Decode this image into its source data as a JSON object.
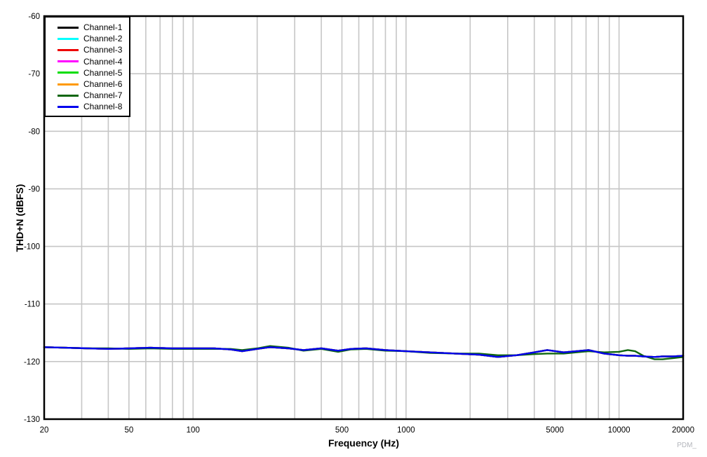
{
  "chart_data": {
    "type": "line",
    "title": "",
    "xlabel": "Frequency (Hz)",
    "ylabel": "THD+N (dBFS)",
    "watermark": "PDM_",
    "grid": true,
    "grid_color": "#c6c6c6",
    "frame_color": "#000000",
    "legend_position": "top-left",
    "x_axis": {
      "scale": "log",
      "min": 20,
      "max": 20000,
      "tick_values": [
        20,
        50,
        100,
        500,
        1000,
        5000,
        10000,
        20000
      ],
      "tick_labels": [
        "20",
        "50",
        "100",
        "500",
        "1000",
        "5000",
        "10000",
        "20000"
      ],
      "gridlines": [
        30,
        40,
        50,
        60,
        70,
        80,
        90,
        100,
        200,
        300,
        400,
        500,
        600,
        700,
        800,
        900,
        1000,
        2000,
        3000,
        4000,
        5000,
        6000,
        7000,
        8000,
        9000,
        10000
      ]
    },
    "y_axis": {
      "min": -130,
      "max": -60,
      "tick_values": [
        -60,
        -70,
        -80,
        -90,
        -100,
        -110,
        -120,
        -130
      ],
      "tick_labels": [
        "-60",
        "-70",
        "-80",
        "-90",
        "-100",
        "-110",
        "-120",
        "-130"
      ],
      "gridlines": [
        -70,
        -80,
        -90,
        -100,
        -110,
        -120
      ]
    },
    "x": [
      20,
      25,
      32,
      40,
      50,
      63,
      80,
      100,
      125,
      150,
      170,
      200,
      230,
      280,
      330,
      400,
      480,
      550,
      650,
      800,
      1000,
      1300,
      1700,
      2200,
      2700,
      3300,
      4000,
      4600,
      5500,
      6300,
      7200,
      8500,
      10000,
      11000,
      11900,
      13000,
      14700,
      16000,
      18000,
      20000
    ],
    "series": [
      {
        "name": "Channel-1",
        "color": "#000000",
        "values": [
          -117.5,
          -117.6,
          -117.7,
          -117.8,
          -117.7,
          -117.6,
          -117.7,
          -117.7,
          -117.7,
          -117.9,
          -118.2,
          -117.8,
          -117.5,
          -117.7,
          -118.0,
          -117.7,
          -118.1,
          -117.8,
          -117.7,
          -118.0,
          -118.2,
          -118.4,
          -118.6,
          -118.8,
          -119.2,
          -118.9,
          -118.4,
          -118.0,
          -118.4,
          -118.2,
          -118.0,
          -118.6,
          -118.9,
          -119.0,
          -119.0,
          -119.1,
          -119.2,
          -119.1,
          -119.1,
          -119.0
        ]
      },
      {
        "name": "Channel-2",
        "color": "#00ffff",
        "values": [
          -117.5,
          -117.6,
          -117.7,
          -117.8,
          -117.7,
          -117.6,
          -117.7,
          -117.7,
          -117.7,
          -117.9,
          -118.2,
          -117.8,
          -117.5,
          -117.7,
          -118.0,
          -117.7,
          -118.1,
          -117.8,
          -117.7,
          -118.0,
          -118.2,
          -118.4,
          -118.6,
          -118.8,
          -119.2,
          -118.9,
          -118.4,
          -118.0,
          -118.4,
          -118.2,
          -118.0,
          -118.6,
          -118.9,
          -119.0,
          -119.0,
          -119.1,
          -119.2,
          -119.1,
          -119.1,
          -119.0
        ]
      },
      {
        "name": "Channel-3",
        "color": "#ee0000",
        "values": [
          -117.5,
          -117.6,
          -117.7,
          -117.8,
          -117.7,
          -117.6,
          -117.7,
          -117.7,
          -117.7,
          -117.9,
          -118.2,
          -117.8,
          -117.5,
          -117.7,
          -118.0,
          -117.7,
          -118.1,
          -117.8,
          -117.7,
          -118.0,
          -118.2,
          -118.4,
          -118.6,
          -118.8,
          -119.2,
          -118.9,
          -118.4,
          -118.0,
          -118.4,
          -118.2,
          -118.0,
          -118.6,
          -118.9,
          -119.0,
          -119.0,
          -119.1,
          -119.2,
          -119.1,
          -119.1,
          -119.0
        ]
      },
      {
        "name": "Channel-4",
        "color": "#ff00ff",
        "values": [
          -117.5,
          -117.6,
          -117.7,
          -117.8,
          -117.7,
          -117.6,
          -117.7,
          -117.7,
          -117.7,
          -117.9,
          -118.2,
          -117.8,
          -117.5,
          -117.7,
          -118.0,
          -117.7,
          -118.1,
          -117.8,
          -117.7,
          -118.0,
          -118.2,
          -118.4,
          -118.6,
          -118.8,
          -119.2,
          -118.9,
          -118.4,
          -118.0,
          -118.4,
          -118.2,
          -118.0,
          -118.6,
          -118.9,
          -119.0,
          -119.0,
          -119.1,
          -119.2,
          -119.1,
          -119.1,
          -119.0
        ]
      },
      {
        "name": "Channel-5",
        "color": "#00dd00",
        "values": [
          -117.5,
          -117.6,
          -117.7,
          -117.8,
          -117.7,
          -117.6,
          -117.7,
          -117.7,
          -117.7,
          -117.9,
          -118.2,
          -117.8,
          -117.5,
          -117.7,
          -118.0,
          -117.7,
          -118.1,
          -117.8,
          -117.7,
          -118.0,
          -118.2,
          -118.4,
          -118.6,
          -118.8,
          -119.2,
          -118.9,
          -118.4,
          -118.0,
          -118.4,
          -118.2,
          -118.0,
          -118.6,
          -118.9,
          -119.0,
          -119.0,
          -119.1,
          -119.2,
          -119.1,
          -119.1,
          -119.0
        ]
      },
      {
        "name": "Channel-6",
        "color": "#ff9900",
        "values": [
          -117.5,
          -117.6,
          -117.7,
          -117.8,
          -117.7,
          -117.6,
          -117.7,
          -117.7,
          -117.7,
          -117.9,
          -118.2,
          -117.8,
          -117.5,
          -117.7,
          -118.0,
          -117.7,
          -118.1,
          -117.8,
          -117.7,
          -118.0,
          -118.2,
          -118.4,
          -118.6,
          -118.8,
          -119.2,
          -118.9,
          -118.4,
          -118.0,
          -118.4,
          -118.2,
          -118.0,
          -118.6,
          -118.9,
          -119.0,
          -119.0,
          -119.1,
          -119.2,
          -119.1,
          -119.1,
          -119.0
        ]
      },
      {
        "name": "Channel-7",
        "color": "#0e660e",
        "values": [
          -117.5,
          -117.6,
          -117.7,
          -117.7,
          -117.8,
          -117.7,
          -117.8,
          -117.8,
          -117.8,
          -117.8,
          -118.0,
          -117.7,
          -117.3,
          -117.6,
          -118.1,
          -117.8,
          -118.3,
          -117.9,
          -117.8,
          -118.1,
          -118.2,
          -118.5,
          -118.6,
          -118.6,
          -118.9,
          -118.9,
          -118.7,
          -118.6,
          -118.6,
          -118.4,
          -118.2,
          -118.4,
          -118.3,
          -118.0,
          -118.2,
          -119.0,
          -119.6,
          -119.6,
          -119.4,
          -119.2
        ]
      },
      {
        "name": "Channel-8",
        "color": "#0000ee",
        "values": [
          -117.5,
          -117.6,
          -117.7,
          -117.8,
          -117.7,
          -117.6,
          -117.7,
          -117.7,
          -117.7,
          -117.9,
          -118.2,
          -117.8,
          -117.5,
          -117.7,
          -118.0,
          -117.7,
          -118.1,
          -117.8,
          -117.7,
          -118.0,
          -118.2,
          -118.4,
          -118.6,
          -118.8,
          -119.2,
          -118.9,
          -118.4,
          -118.0,
          -118.4,
          -118.2,
          -118.0,
          -118.6,
          -118.9,
          -119.0,
          -119.0,
          -119.1,
          -119.2,
          -119.1,
          -119.1,
          -119.0
        ]
      }
    ]
  }
}
